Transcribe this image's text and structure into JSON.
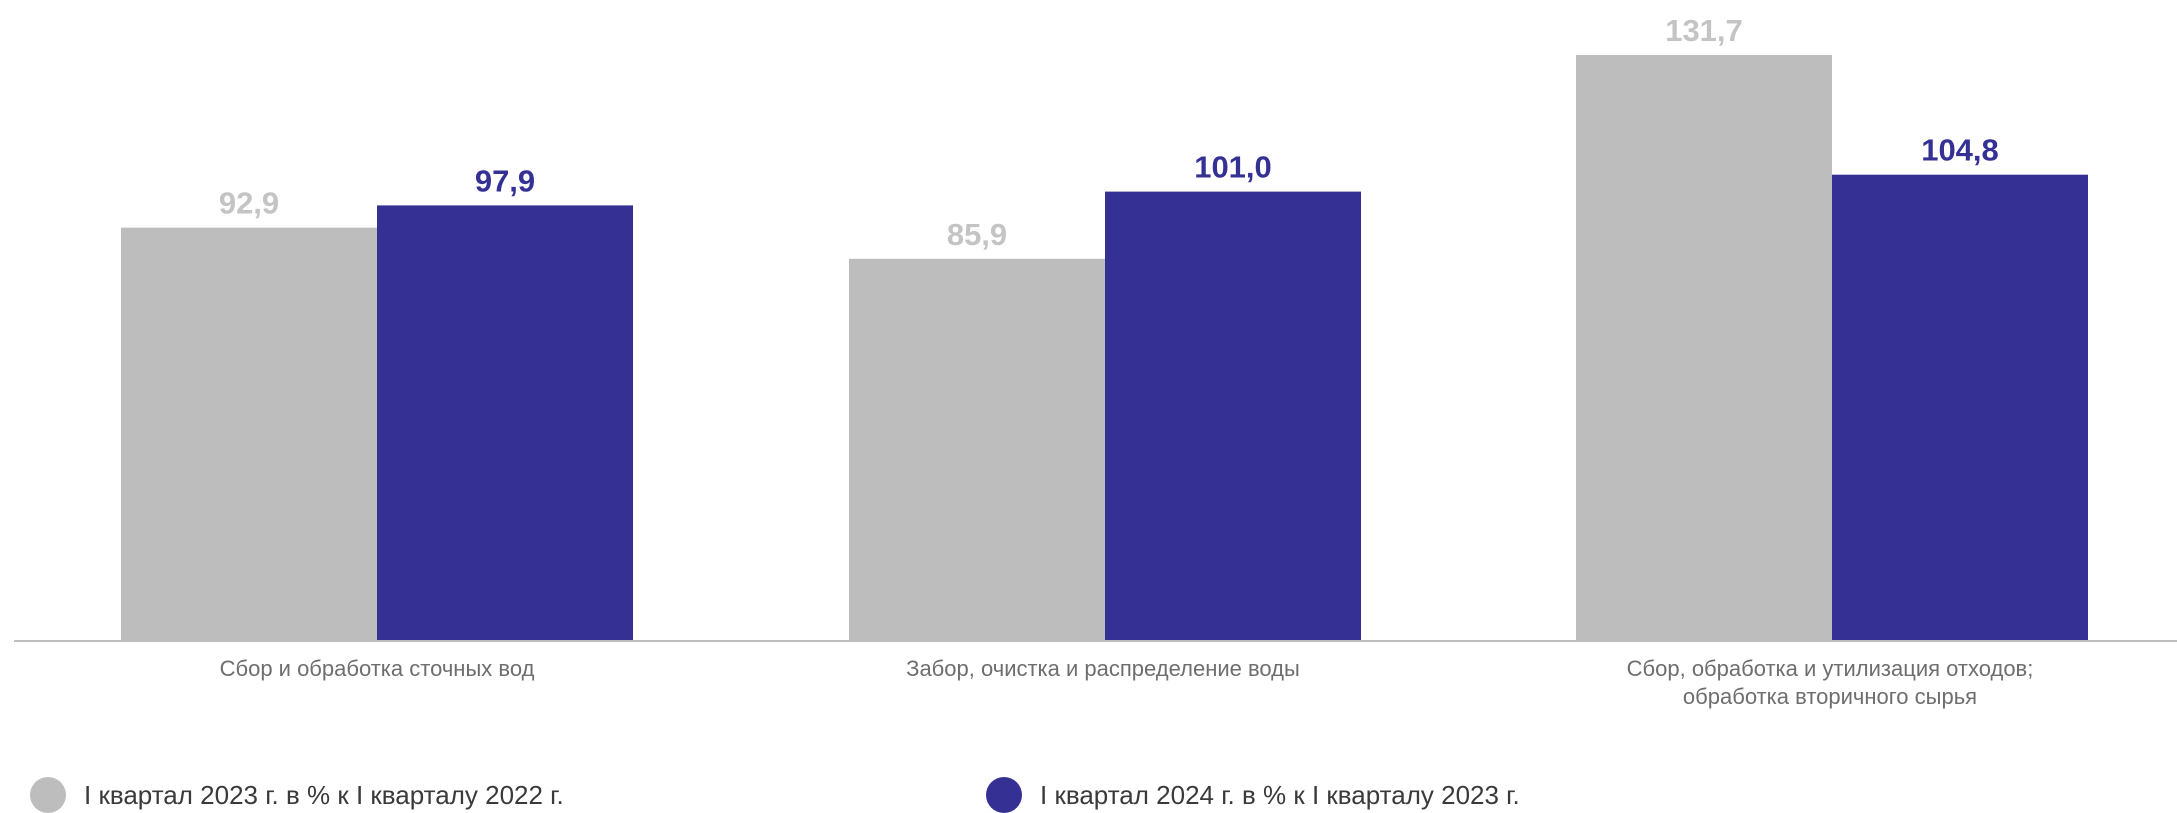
{
  "chart_data": {
    "type": "bar",
    "categories": [
      "Сбор и обработка сточных вод",
      "Забор, очистка и распределение воды",
      "Сбор, обработка и утилизация отходов; обработка вторичного сырья"
    ],
    "series": [
      {
        "name": "I квартал 2023 г. в % к I кварталу 2022 г.",
        "color": "#bdbdbd",
        "values": [
          92.9,
          85.9,
          131.7
        ],
        "labels": [
          "92,9",
          "85,9",
          "131,7"
        ]
      },
      {
        "name": "I квартал 2024 г. в % к I кварталу 2023 г.",
        "color": "#353194",
        "values": [
          97.9,
          101.0,
          104.8
        ],
        "labels": [
          "97,9",
          "101,0",
          "104,8"
        ]
      }
    ],
    "ylim": [
      0,
      131.7
    ],
    "grid": false,
    "legend_position": "bottom"
  }
}
